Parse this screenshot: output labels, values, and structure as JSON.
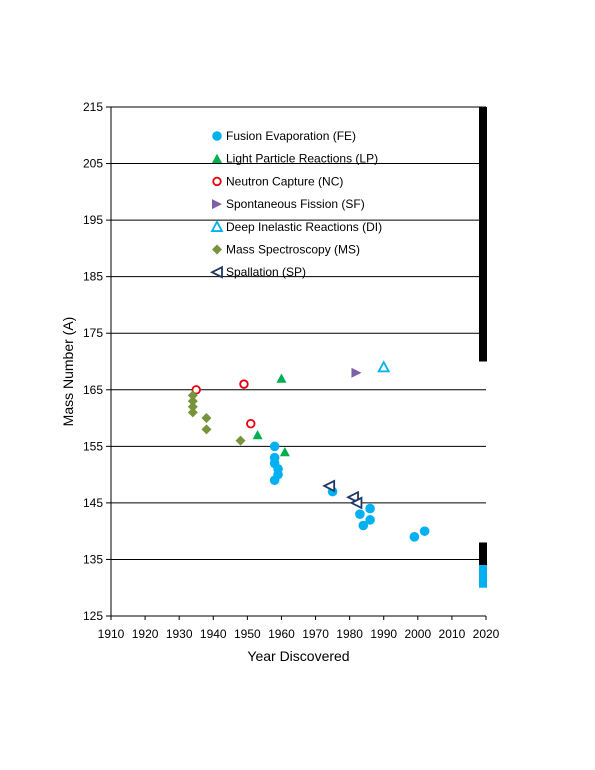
{
  "chart_data": {
    "type": "scatter",
    "xlabel": "Year Discovered",
    "ylabel": "Mass Number (A)",
    "xlim": [
      1910,
      2020
    ],
    "ylim": [
      125,
      215
    ],
    "x_ticks": [
      "1910",
      "1920",
      "1930",
      "1940",
      "1950",
      "1960",
      "1970",
      "1980",
      "1990",
      "2000",
      "2010",
      "2020"
    ],
    "y_ticks": [
      "125",
      "135",
      "145",
      "155",
      "165",
      "175",
      "185",
      "195",
      "205",
      "215"
    ],
    "grid": "horizontal",
    "legend_position": "top-center",
    "series": [
      {
        "name": "Fusion Evaporation (FE)",
        "marker": "circle-filled",
        "color": "#00b0f0",
        "points": [
          [
            1958,
            155
          ],
          [
            1958,
            153
          ],
          [
            1958,
            152
          ],
          [
            1959,
            151
          ],
          [
            1959,
            150
          ],
          [
            1958,
            149
          ],
          [
            1975,
            147
          ],
          [
            1983,
            143
          ],
          [
            1984,
            141
          ],
          [
            1986,
            144
          ],
          [
            1986,
            142
          ],
          [
            1999,
            139
          ],
          [
            2002,
            140
          ]
        ]
      },
      {
        "name": "Light Particle Reactions (LP)",
        "marker": "triangle-filled",
        "color": "#00b050",
        "points": [
          [
            1960,
            167
          ],
          [
            1953,
            157
          ],
          [
            1961,
            154
          ]
        ]
      },
      {
        "name": "Neutron Capture (NC)",
        "marker": "circle-open",
        "color": "#e8000b",
        "points": [
          [
            1935,
            165
          ],
          [
            1949,
            166
          ],
          [
            1951,
            159
          ]
        ]
      },
      {
        "name": "Spontaneous Fission (SF)",
        "marker": "triangle-right-filled",
        "color": "#7f5fa8",
        "points": [
          [
            1982,
            168
          ]
        ]
      },
      {
        "name": "Deep Inelastic Reactions (DI)",
        "marker": "triangle-open",
        "color": "#00b0f0",
        "points": [
          [
            1990,
            169
          ]
        ]
      },
      {
        "name": "Mass Spectroscopy (MS)",
        "marker": "diamond-filled",
        "color": "#77933c",
        "points": [
          [
            1934,
            164
          ],
          [
            1934,
            163
          ],
          [
            1934,
            162
          ],
          [
            1934,
            161
          ],
          [
            1938,
            160
          ],
          [
            1938,
            158
          ],
          [
            1948,
            156
          ]
        ]
      },
      {
        "name": "Spallation (SP)",
        "marker": "triangle-left-open",
        "color": "#1f3864",
        "points": [
          [
            1974,
            148
          ],
          [
            1981,
            146
          ],
          [
            1982,
            145
          ]
        ]
      }
    ],
    "right_bars": [
      {
        "from": 170,
        "to": 215,
        "color": "#000000"
      },
      {
        "from": 134,
        "to": 138,
        "color": "#000000"
      },
      {
        "from": 130,
        "to": 134,
        "color": "#00b0f0"
      }
    ]
  }
}
